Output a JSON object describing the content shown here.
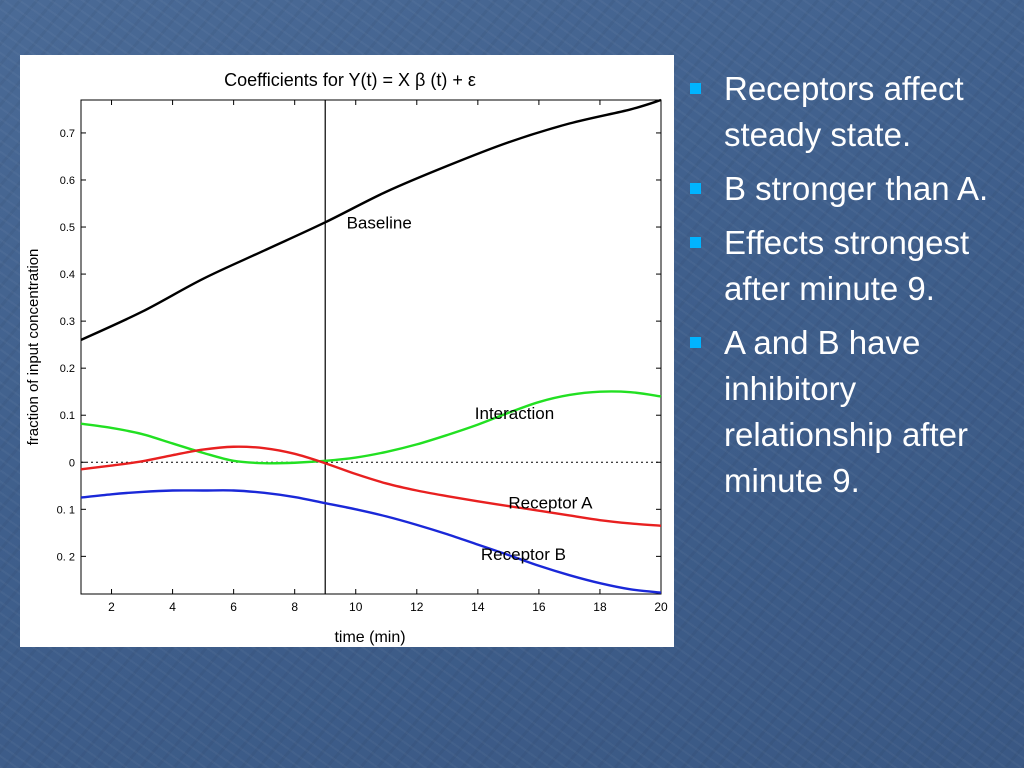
{
  "slide": {
    "bullets": [
      "Receptors affect steady state.",
      "B stronger than A.",
      "Effects strongest after minute 9.",
      "A and B have inhibitory relationship after minute 9."
    ],
    "accent_color": "#00b4ff"
  },
  "chart_data": {
    "type": "line",
    "title": "Coefficients for  Y(t) = X β (t) + ε",
    "xlabel": "time (min)",
    "ylabel": "fraction of input concentration",
    "xlim": [
      1,
      20
    ],
    "ylim": [
      -0.28,
      0.77
    ],
    "x_ticks": [
      2,
      4,
      6,
      8,
      10,
      12,
      14,
      16,
      18,
      20
    ],
    "y_ticks": [
      {
        "value": 0.7,
        "label": "0.7"
      },
      {
        "value": 0.6,
        "label": "0.6"
      },
      {
        "value": 0.5,
        "label": "0.5"
      },
      {
        "value": 0.4,
        "label": "0.4"
      },
      {
        "value": 0.3,
        "label": "0.3"
      },
      {
        "value": 0.2,
        "label": "0.2"
      },
      {
        "value": 0.1,
        "label": "0.1"
      },
      {
        "value": 0,
        "label": "0"
      },
      {
        "value": -0.1,
        "label": "0.  1"
      },
      {
        "value": -0.2,
        "label": "0.  2"
      }
    ],
    "vertical_line_x": 9,
    "zero_line": "dotted",
    "series": [
      {
        "name": "Baseline",
        "color": "#000000",
        "x": [
          1,
          3,
          5,
          7,
          9,
          11,
          13,
          15,
          17,
          19,
          20
        ],
        "y": [
          0.26,
          0.32,
          0.39,
          0.45,
          0.51,
          0.575,
          0.63,
          0.68,
          0.72,
          0.75,
          0.77
        ]
      },
      {
        "name": "Interaction",
        "color": "#22e022",
        "x": [
          1,
          2,
          3,
          4,
          5,
          6,
          7,
          8,
          9,
          10,
          11,
          12,
          13,
          14,
          15,
          16,
          17,
          18,
          19,
          20
        ],
        "y": [
          0.082,
          0.073,
          0.06,
          0.04,
          0.02,
          0.003,
          -0.002,
          -0.001,
          0.003,
          0.01,
          0.022,
          0.038,
          0.058,
          0.08,
          0.105,
          0.128,
          0.143,
          0.15,
          0.149,
          0.14
        ]
      },
      {
        "name": "Receptor A",
        "color": "#e82020",
        "x": [
          1,
          2,
          3,
          4,
          5,
          6,
          7,
          8,
          9,
          10,
          11,
          12,
          13,
          14,
          15,
          16,
          17,
          18,
          19,
          20
        ],
        "y": [
          -0.015,
          -0.007,
          0.002,
          0.015,
          0.027,
          0.033,
          0.03,
          0.018,
          -0.002,
          -0.025,
          -0.045,
          -0.06,
          -0.072,
          -0.083,
          -0.093,
          -0.103,
          -0.113,
          -0.123,
          -0.13,
          -0.135
        ]
      },
      {
        "name": "Receptor B",
        "color": "#1a28d8",
        "x": [
          1,
          2,
          3,
          4,
          5,
          6,
          7,
          8,
          9,
          10,
          11,
          12,
          13,
          14,
          15,
          16,
          17,
          18,
          19,
          20
        ],
        "y": [
          -0.075,
          -0.068,
          -0.063,
          -0.06,
          -0.06,
          -0.06,
          -0.065,
          -0.074,
          -0.087,
          -0.1,
          -0.115,
          -0.133,
          -0.153,
          -0.175,
          -0.197,
          -0.22,
          -0.24,
          -0.257,
          -0.27,
          -0.277
        ]
      }
    ],
    "annotations": [
      {
        "text": "Baseline",
        "x": 9.7,
        "y": 0.51,
        "anchor": "start"
      },
      {
        "text": "Interaction",
        "x": 13.9,
        "y": 0.105,
        "anchor": "start"
      },
      {
        "text": "Receptor A",
        "x": 15.0,
        "y": -0.085,
        "anchor": "start"
      },
      {
        "text": "Receptor B",
        "x": 14.1,
        "y": -0.195,
        "anchor": "start"
      }
    ]
  }
}
